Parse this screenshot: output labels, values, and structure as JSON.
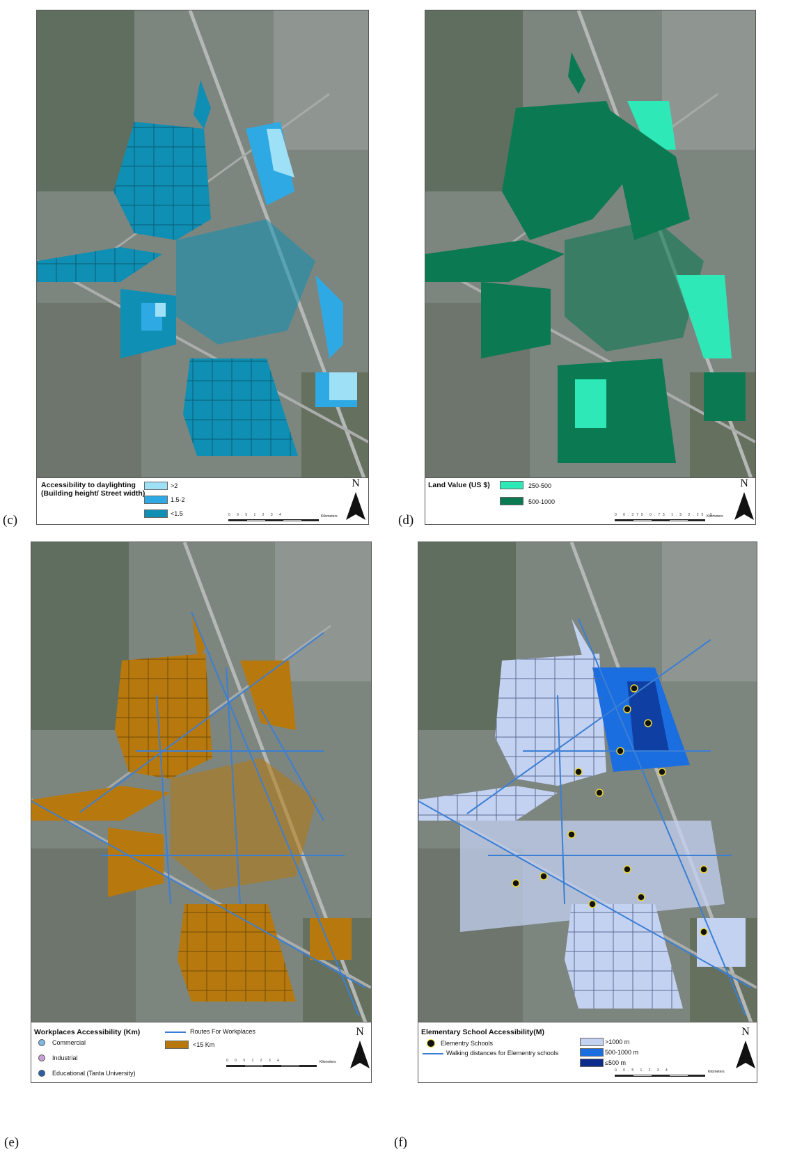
{
  "panels": {
    "c": {
      "label": "(c)",
      "legend_title_1": "Accessibility to daylighting",
      "legend_title_2": "(Building height/ Street width)",
      "items": [
        {
          "label": ">2",
          "color": "#9ee0f5"
        },
        {
          "label": "1.5-2",
          "color": "#2fa9e3"
        },
        {
          "label": "<1.5",
          "color": "#0f8fb3"
        }
      ],
      "scale_ticks": "0  0.5  1  2  3  4",
      "scale_unit": "Kilometers",
      "north": "N"
    },
    "d": {
      "label": "(d)",
      "legend_title": "Land Value (US $)",
      "items": [
        {
          "label": "250-500",
          "color": "#2ee8b8"
        },
        {
          "label": "500-1000",
          "color": "#0b7a52"
        }
      ],
      "scale_ticks": "0  0.375  0.75  1.5  2.25  3",
      "scale_unit": "Kilometers",
      "north": "N"
    },
    "e": {
      "label": "(e)",
      "legend_title": "Workplaces Accessibility (Km)",
      "items": [
        {
          "label": "Commercial",
          "icon": "commercial-icon",
          "color": "#7fb8e0"
        },
        {
          "label": "Industrial",
          "icon": "industrial-icon",
          "color": "#c9a0d8"
        },
        {
          "label": "Educational (Tanta University)",
          "icon": "educational-icon",
          "color": "#2a5fa8"
        }
      ],
      "route_label": "Routes For Workplaces",
      "route_color": "#3b7fd4",
      "area_label": "<15  Km",
      "area_color": "#b7790e",
      "scale_ticks": "0  0.5  1  2  3  4",
      "scale_unit": "Kilometers",
      "north": "N"
    },
    "f": {
      "label": "(f)",
      "legend_title": "Elementary School Accessibility(M)",
      "school_label": "Elementry Schools",
      "walk_label": "Walking distances for Elementry schools",
      "items": [
        {
          "label": ">1000 m",
          "color": "#c4d2f2"
        },
        {
          "label": "500-1000  m",
          "color": "#1a6ee0"
        },
        {
          "label": "≤500  m",
          "color": "#0d2b8a"
        }
      ],
      "scale_ticks": "0  0.5  1  2  3  4",
      "scale_unit": "Kilometers",
      "north": "N"
    }
  }
}
